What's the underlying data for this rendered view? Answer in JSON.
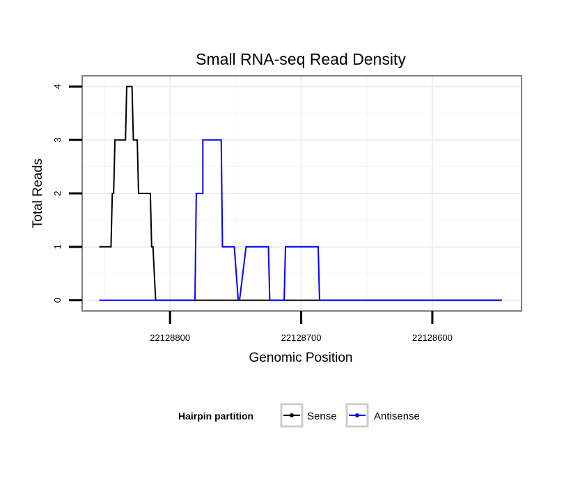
{
  "chart_data": {
    "type": "line",
    "title": "Small RNA-seq Read Density",
    "xlabel": "Genomic Position",
    "ylabel": "Total Reads",
    "xlim": [
      22128867,
      22128532
    ],
    "ylim": [
      -0.2,
      4.2
    ],
    "x_reversed": true,
    "grid": true,
    "x_ticks": [
      22128800,
      22128700,
      22128600
    ],
    "x_tick_labels": [
      "22128800",
      "22128700",
      "22128600"
    ],
    "y_ticks": [
      0,
      1,
      2,
      3,
      4
    ],
    "y_tick_labels": [
      "0",
      "1",
      "2",
      "3",
      "4"
    ],
    "legend": {
      "title": "Hairpin partition",
      "placement": "bottom",
      "entries": [
        "Sense",
        "Antisense"
      ]
    },
    "series": [
      {
        "name": "Sense",
        "color": "#000000",
        "x": [
          22128854,
          22128845,
          22128844,
          22128843,
          22128842,
          22128840,
          22128839,
          22128834,
          22128833,
          22128829,
          22128828,
          22128825,
          22128824,
          22128821,
          22128820,
          22128815,
          22128814,
          22128813,
          22128811,
          22128547
        ],
        "y": [
          1,
          1,
          2,
          2,
          3,
          3,
          3,
          3,
          4,
          4,
          3,
          3,
          2,
          2,
          2,
          2,
          1,
          1,
          0,
          0
        ]
      },
      {
        "name": "Antisense",
        "color": "#0000ff",
        "x": [
          22128854,
          22128781,
          22128780,
          22128778,
          22128777,
          22128775,
          22128775,
          22128761,
          22128760,
          22128752,
          22128751,
          22128748,
          22128747,
          22128742,
          22128742,
          22128725,
          22128724,
          22128713,
          22128712,
          22128687,
          22128686,
          22128547
        ],
        "y": [
          0,
          0,
          2,
          2,
          2,
          2,
          3,
          3,
          1,
          1,
          1,
          0,
          0,
          1,
          1,
          1,
          0,
          0,
          1,
          1,
          0,
          0
        ]
      }
    ]
  }
}
